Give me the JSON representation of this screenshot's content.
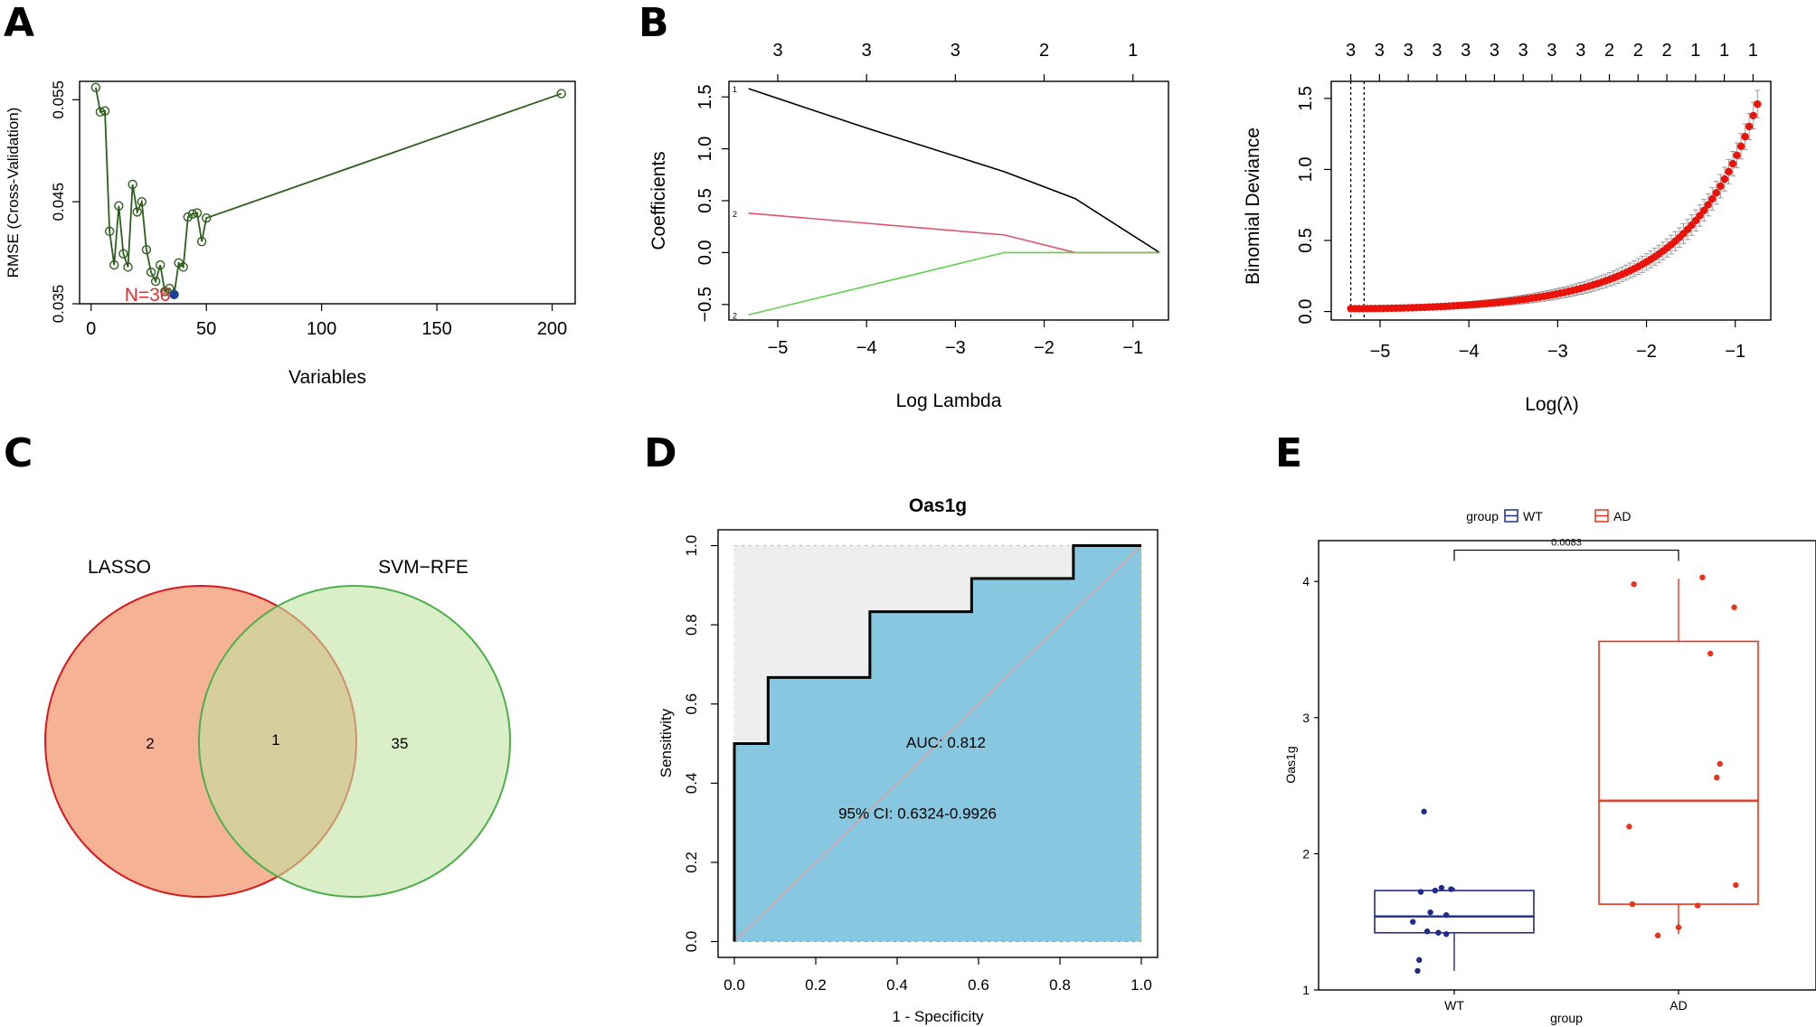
{
  "panel_letters": {
    "a": "A",
    "b": "B",
    "c": "C",
    "d": "D",
    "e": "E"
  },
  "chart_data": [
    {
      "id": "A",
      "type": "line",
      "xlabel": "Variables",
      "ylabel": "RMSE (Cross-Validation)",
      "xlim": [
        -5,
        210
      ],
      "ylim": [
        0.035,
        0.0568
      ],
      "xticks": [
        0,
        50,
        100,
        150,
        200
      ],
      "yticks": [
        0.035,
        0.045,
        0.055
      ],
      "annotation": "N=36",
      "optimal": {
        "x": 36,
        "y": 0.0359
      },
      "x": [
        2,
        4,
        6,
        8,
        10,
        12,
        14,
        16,
        18,
        20,
        22,
        24,
        26,
        28,
        30,
        32,
        34,
        36,
        38,
        40,
        42,
        44,
        46,
        48,
        50,
        204
      ],
      "y": [
        0.0562,
        0.0538,
        0.0539,
        0.0421,
        0.0388,
        0.0446,
        0.0399,
        0.0386,
        0.0467,
        0.044,
        0.045,
        0.0403,
        0.0381,
        0.0372,
        0.0388,
        0.0362,
        0.0365,
        0.0359,
        0.039,
        0.0386,
        0.0435,
        0.0438,
        0.0439,
        0.0411,
        0.0434,
        0.0556
      ]
    },
    {
      "id": "B1",
      "type": "line",
      "xlabel": "Log Lambda",
      "ylabel": "Coefficients",
      "xlim": [
        -5.55,
        -0.6
      ],
      "ylim": [
        -0.65,
        1.65
      ],
      "xticks": [
        -5,
        -4,
        -3,
        -2,
        -1
      ],
      "yticks": [
        -0.5,
        0.0,
        0.5,
        1.0,
        1.5
      ],
      "top_ticks": [
        "3",
        "3",
        "3",
        "2",
        "1"
      ],
      "top_tick_positions": [
        -5,
        -4,
        -3,
        -2,
        -1
      ],
      "curve_labels": [
        "1",
        "2",
        "2"
      ],
      "series": [
        {
          "name": "1",
          "color": "#000000",
          "x": [
            -5.33,
            -4,
            -2.45,
            -1.65,
            -0.7
          ],
          "y": [
            1.58,
            1.2,
            0.78,
            0.52,
            0.0
          ]
        },
        {
          "name": "2",
          "color": "#DF536B",
          "x": [
            -5.33,
            -2.45,
            -1.65,
            -0.7
          ],
          "y": [
            0.38,
            0.17,
            0.0,
            0.0
          ]
        },
        {
          "name": "3",
          "color": "#61D04F",
          "x": [
            -5.33,
            -2.45,
            -0.7
          ],
          "y": [
            -0.6,
            0.0,
            0.0
          ]
        }
      ]
    },
    {
      "id": "B2",
      "type": "scatter",
      "xlabel": "Log(λ)",
      "ylabel": "Binomial Deviance",
      "xlim": [
        -5.55,
        -0.6
      ],
      "ylim": [
        -0.06,
        1.62
      ],
      "xticks": [
        -5,
        -4,
        -3,
        -2,
        -1
      ],
      "yticks": [
        0.0,
        0.5,
        1.0,
        1.5
      ],
      "top_ticks": [
        "3",
        "3",
        "3",
        "3",
        "3",
        "3",
        "3",
        "3",
        "3",
        "2",
        "2",
        "2",
        "1",
        "1",
        "1"
      ],
      "vlines": [
        -5.33,
        -5.18
      ],
      "curve": {
        "x_start": -5.33,
        "x_end": -0.75,
        "n_points": 100,
        "y_min": 0.02,
        "y_max": 1.46,
        "growth": 2.7,
        "error": 0.08
      }
    },
    {
      "id": "C",
      "type": "venn",
      "sets": [
        {
          "name": "LASSO",
          "color": "#F4A582",
          "border": "#D7191C"
        },
        {
          "name": "SVM−RFE",
          "color": "#C2E3A4",
          "border": "#4DAF4A"
        }
      ],
      "only_a": "2",
      "both": "1",
      "only_b": "35"
    },
    {
      "id": "D",
      "type": "line",
      "title": "Oas1g",
      "xlabel": "1 - Specificity",
      "ylabel": "Sensitivity",
      "xlim": [
        -0.04,
        1.04
      ],
      "ylim": [
        -0.04,
        1.04
      ],
      "xticks": [
        "0.0",
        "0.2",
        "0.4",
        "0.6",
        "0.8",
        "1.0"
      ],
      "yticks": [
        "0.0",
        "0.2",
        "0.4",
        "0.6",
        "0.8",
        "1.0"
      ],
      "auc_text": "AUC: 0.812",
      "ci_text": "95% CI: 0.6324-0.9926",
      "auc_label_at": [
        0.52,
        0.49
      ],
      "ci_label_at": [
        0.45,
        0.31
      ],
      "roc": {
        "fpr": [
          0,
          0,
          0.083,
          0.083,
          0.333,
          0.333,
          0.583,
          0.583,
          0.833,
          0.833,
          1
        ],
        "tpr": [
          0,
          0.5,
          0.5,
          0.667,
          0.667,
          0.833,
          0.833,
          0.917,
          0.917,
          1,
          1
        ]
      }
    },
    {
      "id": "E",
      "type": "box",
      "xlabel": "group",
      "ylabel": "Oas1g",
      "ylim": [
        1.0,
        4.3
      ],
      "yticks": [
        "1",
        "2",
        "3",
        "4"
      ],
      "legend_title": "group",
      "pvalue": "0.0083",
      "groups": [
        {
          "name": "WT",
          "color": "#1F2A8C",
          "min": 1.14,
          "q1": 1.42,
          "median": 1.54,
          "q3": 1.73,
          "max": 1.75,
          "points": [
            [
              -0.19,
              2.31
            ],
            [
              -0.12,
              1.73
            ],
            [
              -0.21,
              1.72
            ],
            [
              -0.08,
              1.75
            ],
            [
              -0.02,
              1.74
            ],
            [
              -0.26,
              1.5
            ],
            [
              -0.15,
              1.57
            ],
            [
              -0.05,
              1.55
            ],
            [
              -0.17,
              1.43
            ],
            [
              -0.1,
              1.42
            ],
            [
              -0.05,
              1.41
            ],
            [
              -0.22,
              1.22
            ],
            [
              -0.23,
              1.14
            ]
          ]
        },
        {
          "name": "AD",
          "color": "#E8341C",
          "min": 1.41,
          "q1": 1.63,
          "median": 2.39,
          "q3": 3.56,
          "max": 4.02,
          "points": [
            [
              0.15,
              4.03
            ],
            [
              -0.28,
              3.98
            ],
            [
              0.35,
              3.81
            ],
            [
              0.2,
              3.47
            ],
            [
              0.26,
              2.66
            ],
            [
              0.24,
              2.56
            ],
            [
              -0.31,
              2.2
            ],
            [
              -0.29,
              1.63
            ],
            [
              0.12,
              1.62
            ],
            [
              0.36,
              1.77
            ],
            [
              -0.13,
              1.4
            ],
            [
              0.0,
              1.46
            ]
          ]
        }
      ]
    }
  ]
}
